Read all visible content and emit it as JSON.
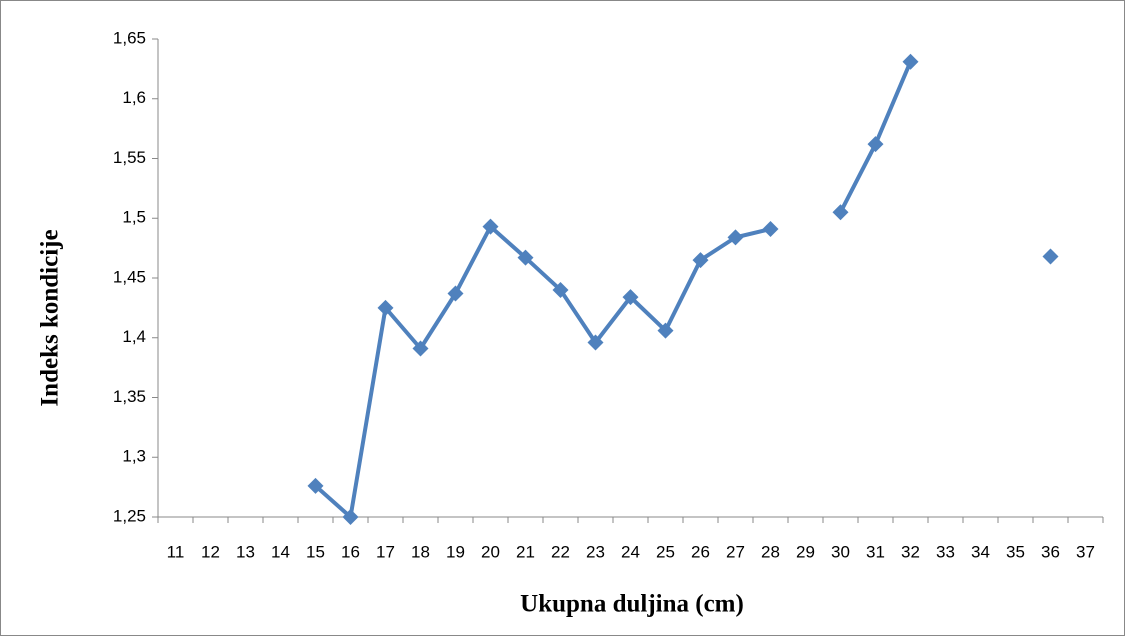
{
  "chart_data": {
    "type": "line",
    "x_label": "Ukupna duljina (cm)",
    "y_label": "Indeks kondicije",
    "categories": [
      "11",
      "12",
      "13",
      "14",
      "15",
      "16",
      "17",
      "18",
      "19",
      "20",
      "21",
      "22",
      "23",
      "24",
      "25",
      "26",
      "27",
      "28",
      "29",
      "30",
      "31",
      "32",
      "33",
      "34",
      "35",
      "36",
      "37"
    ],
    "series": [
      {
        "color": "#4f81bd",
        "values": [
          null,
          null,
          null,
          null,
          1.276,
          1.25,
          1.425,
          1.391,
          1.437,
          1.493,
          1.467,
          1.44,
          1.396,
          1.434,
          1.406,
          1.465,
          1.484,
          1.491,
          null,
          1.505,
          1.562,
          1.631,
          null,
          null,
          null,
          1.468,
          null
        ]
      }
    ],
    "ylim": [
      1.25,
      1.65
    ],
    "yticks": [
      {
        "value": 1.25,
        "label": "1,25"
      },
      {
        "value": 1.3,
        "label": "1,3"
      },
      {
        "value": 1.35,
        "label": "1,35"
      },
      {
        "value": 1.4,
        "label": "1,4"
      },
      {
        "value": 1.45,
        "label": "1,45"
      },
      {
        "value": 1.5,
        "label": "1,5"
      },
      {
        "value": 1.55,
        "label": "1,55"
      },
      {
        "value": 1.6,
        "label": "1,6"
      },
      {
        "value": 1.65,
        "label": "1,65"
      }
    ],
    "grid": false
  }
}
